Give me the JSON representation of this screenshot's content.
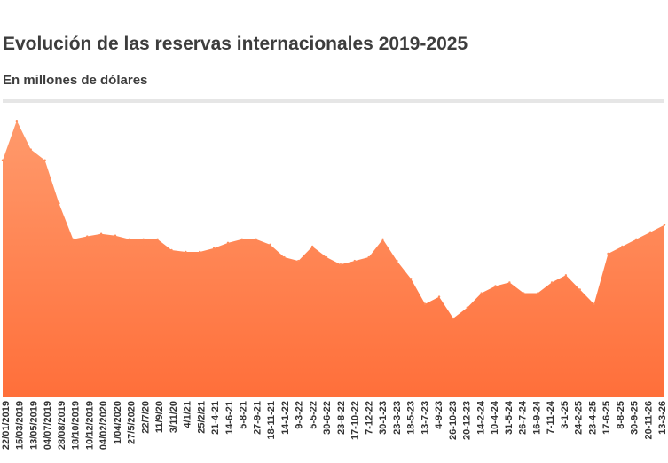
{
  "header": {
    "title": "Evolución de las reservas internacionales 2019-2025",
    "subtitle": "En millones de dólares"
  },
  "chart_data": {
    "type": "area",
    "title": "Evolución de las reservas internacionales 2019-2025",
    "subtitle": "En millones de dólares",
    "xlabel": "",
    "ylabel": "",
    "ylim": [
      0,
      80000
    ],
    "grid": false,
    "legend": "none",
    "color": "#ff8c5a",
    "x_tick_labels": [
      "22/01/2019",
      "15/03/2019",
      "13/05/2019",
      "04/07/2019",
      "28/08/2019",
      "18/10/2019",
      "10/12/2019",
      "04/02/2020",
      "1/04/2020",
      "27/5/2020",
      "22/7/20",
      "11/9/20",
      "3/11/20",
      "4/1/21",
      "25/2/21",
      "21-4-21",
      "14-6-21",
      "5-8-21",
      "27-9-21",
      "18-11-21",
      "14-1-22",
      "9-3-22",
      "5-5-22",
      "30-6-22",
      "23-8-22",
      "17-10-22",
      "7-12-22",
      "30-1-23",
      "23-3-23",
      "18-5-23",
      "13-7-23",
      "4-9-23",
      "26-10-23",
      "20-12-23",
      "14-2-24",
      "10-4-24",
      "31-5-24",
      "26-7-24",
      "16-9-24",
      "7-11-24",
      "3-1-25",
      "24-2-25",
      "23-4-25",
      "17-6-25",
      "8-8-25",
      "30-9-25",
      "20-11-26",
      "13-3-26"
    ],
    "x": [
      "22/01/2019",
      "15/03/2019",
      "13/05/2019",
      "04/07/2019",
      "28/08/2019",
      "18/10/2019",
      "10/12/2019",
      "04/02/2020",
      "1/04/2020",
      "27/5/2020",
      "22/7/20",
      "11/9/20",
      "3/11/20",
      "4/1/21",
      "25/2/21",
      "21-4-21",
      "14-6-21",
      "5-8-21",
      "27-9-21",
      "18-11-21",
      "14-1-22",
      "9-3-22",
      "5-5-22",
      "30-6-22",
      "23-8-22",
      "17-10-22",
      "7-12-22",
      "30-1-23",
      "23-3-23",
      "18-5-23",
      "13-7-23",
      "4-9-23",
      "26-10-23",
      "20-12-23",
      "14-2-24",
      "10-4-24",
      "31-5-24",
      "26-7-24",
      "16-9-24",
      "7-11-24",
      "3-1-25",
      "24-2-25",
      "23-4-25",
      "17-6-25",
      "8-8-25",
      "30-9-25",
      "20-11-26",
      "13-3-26"
    ],
    "values": [
      66000,
      77000,
      69000,
      66000,
      54000,
      44000,
      44800,
      45500,
      45000,
      44000,
      44000,
      44000,
      41000,
      40500,
      40500,
      41500,
      43000,
      44000,
      44000,
      42500,
      39000,
      38000,
      42000,
      39000,
      37000,
      38000,
      39000,
      44000,
      38000,
      33000,
      26000,
      28000,
      22000,
      25000,
      29000,
      31000,
      32000,
      29000,
      29000,
      32000,
      34000,
      30000,
      26000,
      40000,
      42000,
      44000,
      46000,
      48000
    ]
  }
}
